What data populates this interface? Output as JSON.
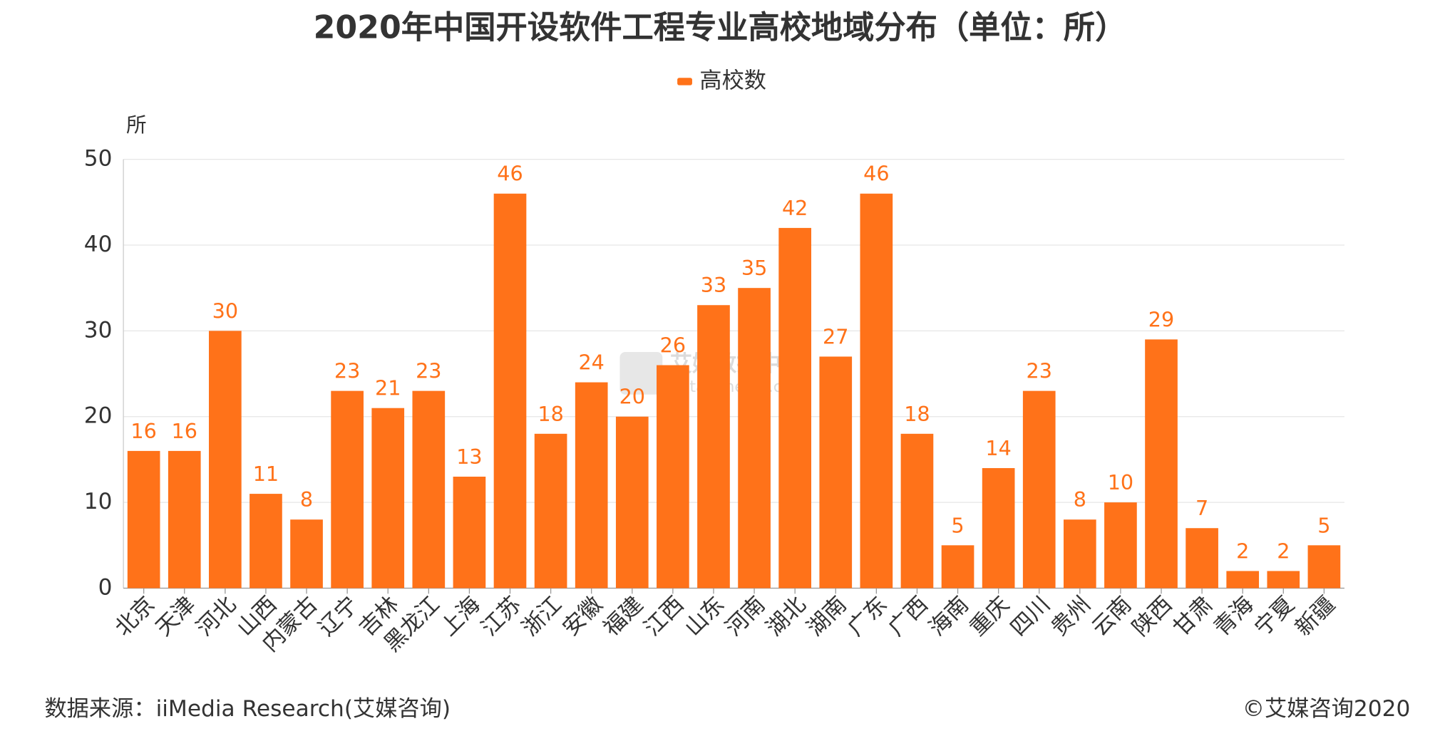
{
  "chart_data": {
    "type": "bar",
    "title": "2020年中国开设软件工程专业高校地域分布（单位：所）",
    "y_label": "所",
    "categories": [
      "北京",
      "天津",
      "河北",
      "山西",
      "内蒙古",
      "辽宁",
      "吉林",
      "黑龙江",
      "上海",
      "江苏",
      "浙江",
      "安徽",
      "福建",
      "江西",
      "山东",
      "河南",
      "湖北",
      "湖南",
      "广东",
      "广西",
      "海南",
      "重庆",
      "四川",
      "贵州",
      "云南",
      "陕西",
      "甘肃",
      "青海",
      "宁夏",
      "新疆"
    ],
    "series": [
      {
        "name": "高校数",
        "color": "#ff7219",
        "values": [
          16,
          16,
          30,
          11,
          8,
          23,
          21,
          23,
          13,
          46,
          18,
          24,
          20,
          26,
          33,
          35,
          42,
          27,
          46,
          18,
          5,
          14,
          23,
          8,
          10,
          29,
          7,
          2,
          2,
          5
        ]
      }
    ],
    "ylim": [
      0,
      50
    ],
    "yticks": [
      0,
      10,
      20,
      30,
      40,
      50
    ],
    "grid": true,
    "legend": "top",
    "source": "数据来源：iiMedia Research(艾媒咨询)",
    "copyright": "©艾媒咨询2020",
    "watermark": {
      "name": "艾媒数据中心",
      "url": "data.iimedia.cn"
    }
  }
}
